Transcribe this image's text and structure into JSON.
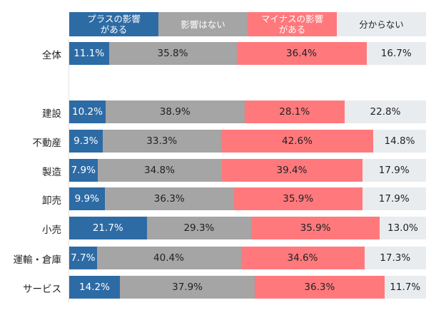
{
  "chart_data": {
    "type": "bar",
    "orientation": "horizontal",
    "stacked": true,
    "normalized_percent": true,
    "legend_position": "top",
    "grid": false,
    "categories": [
      "全体",
      "建設",
      "不動産",
      "製造",
      "卸売",
      "小売",
      "運輸・倉庫",
      "サービス"
    ],
    "series": [
      {
        "name": "プラスの影響\nがある",
        "color": "#2d6ba5",
        "values": [
          11.1,
          10.2,
          9.3,
          7.9,
          9.9,
          21.7,
          7.7,
          14.2
        ]
      },
      {
        "name": "影響はない",
        "color": "#a5a5a5",
        "values": [
          35.8,
          38.9,
          33.3,
          34.8,
          36.3,
          29.3,
          40.4,
          37.9
        ]
      },
      {
        "name": "マイナスの影響\nがある",
        "color": "#ff797c",
        "values": [
          36.4,
          28.1,
          42.6,
          39.4,
          35.9,
          35.9,
          34.6,
          36.3
        ]
      },
      {
        "name": "分からない",
        "color": "#e9ecef",
        "values": [
          16.7,
          22.8,
          14.8,
          17.9,
          17.9,
          13.0,
          17.3,
          11.7
        ]
      }
    ],
    "label_colors": [
      "#ffffff",
      "#222222",
      "#222222",
      "#222222"
    ],
    "legend_text_colors": [
      "#ffffff",
      "#ffffff",
      "#ffffff",
      "#222222"
    ]
  }
}
